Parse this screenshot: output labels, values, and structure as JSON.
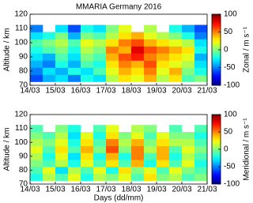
{
  "chart_data": [
    {
      "type": "heatmap",
      "title": "MMARIA Germany 2016",
      "ylabel": "Altitude / km",
      "colormap": "jet",
      "x": [
        14.25,
        14.75,
        15.25,
        15.75,
        16.25,
        16.75,
        17.25,
        17.75,
        18.25,
        18.75,
        19.25,
        19.75,
        20.25,
        20.75
      ],
      "y": [
        75,
        80,
        85,
        90,
        95,
        100,
        105,
        110
      ],
      "values": [
        [
          -60,
          -40,
          -30,
          -50,
          -20,
          -30,
          10,
          30,
          20,
          40,
          10,
          30,
          -10,
          0
        ],
        [
          -50,
          -30,
          -40,
          -20,
          -30,
          -10,
          20,
          40,
          30,
          50,
          20,
          40,
          0,
          -20
        ],
        [
          -40,
          -50,
          -20,
          -40,
          -10,
          -20,
          30,
          50,
          40,
          60,
          30,
          20,
          10,
          -30
        ],
        [
          -30,
          -40,
          -10,
          -30,
          0,
          -10,
          40,
          60,
          70,
          50,
          40,
          30,
          20,
          -40
        ],
        [
          -20,
          -10,
          0,
          -20,
          10,
          0,
          50,
          40,
          80,
          60,
          50,
          40,
          30,
          -20
        ],
        [
          -10,
          0,
          10,
          -10,
          20,
          10,
          30,
          50,
          60,
          40,
          30,
          20,
          10,
          -30
        ],
        [
          -30,
          -20,
          0,
          -40,
          0,
          -10,
          10,
          30,
          40,
          20,
          10,
          0,
          -20,
          -50
        ],
        [
          -50,
          null,
          -30,
          -60,
          -20,
          -30,
          0,
          20,
          null,
          10,
          null,
          -20,
          -40,
          -60
        ]
      ],
      "xlim": [
        14,
        21
      ],
      "xticks": [
        {
          "value": 14,
          "label": "14/03"
        },
        {
          "value": 15,
          "label": "15/03"
        },
        {
          "value": 16,
          "label": "16/03"
        },
        {
          "value": 17,
          "label": "17/03"
        },
        {
          "value": 18,
          "label": "18/03"
        },
        {
          "value": 19,
          "label": "19/03"
        },
        {
          "value": 20,
          "label": "20/03"
        },
        {
          "value": 21,
          "label": "21/03"
        }
      ],
      "ylim": [
        70,
        120
      ],
      "yticks": [
        70,
        80,
        90,
        100,
        110,
        120
      ],
      "colorbar": {
        "label": "Zonal / m s⁻¹",
        "clim": [
          -100,
          100
        ],
        "cticks": [
          -100,
          -50,
          0,
          50,
          100
        ]
      }
    },
    {
      "type": "heatmap",
      "ylabel": "Altitude / km",
      "xlabel": "Days (dd/mm)",
      "colormap": "jet",
      "x": [
        14.25,
        14.75,
        15.25,
        15.75,
        16.25,
        16.75,
        17.25,
        17.75,
        18.25,
        18.75,
        19.25,
        19.75,
        20.25,
        20.75
      ],
      "y": [
        75,
        80,
        85,
        90,
        95,
        100,
        105,
        110
      ],
      "values": [
        [
          -20,
          10,
          -10,
          20,
          -20,
          10,
          0,
          20,
          -10,
          30,
          0,
          10,
          -10,
          0
        ],
        [
          -10,
          20,
          -30,
          10,
          -10,
          20,
          -20,
          30,
          0,
          20,
          -10,
          20,
          0,
          -10
        ],
        [
          0,
          -10,
          10,
          -20,
          20,
          -10,
          30,
          -10,
          40,
          -20,
          30,
          -10,
          20,
          -20
        ],
        [
          10,
          -20,
          20,
          -30,
          30,
          -20,
          40,
          -20,
          50,
          -10,
          40,
          -20,
          10,
          -10
        ],
        [
          20,
          -10,
          30,
          -10,
          40,
          0,
          60,
          0,
          50,
          10,
          40,
          -10,
          20,
          0
        ],
        [
          10,
          0,
          20,
          -20,
          30,
          -10,
          50,
          10,
          40,
          0,
          30,
          10,
          10,
          -10
        ],
        [
          0,
          -10,
          10,
          -30,
          20,
          -20,
          30,
          0,
          20,
          -10,
          20,
          0,
          0,
          -20
        ],
        [
          -10,
          null,
          0,
          -20,
          null,
          -10,
          20,
          null,
          10,
          0,
          null,
          -10,
          null,
          -10
        ]
      ],
      "xlim": [
        14,
        21
      ],
      "xticks": [
        {
          "value": 14,
          "label": "14/03"
        },
        {
          "value": 15,
          "label": "15/03"
        },
        {
          "value": 16,
          "label": "16/03"
        },
        {
          "value": 17,
          "label": "17/03"
        },
        {
          "value": 18,
          "label": "18/03"
        },
        {
          "value": 19,
          "label": "19/03"
        },
        {
          "value": 20,
          "label": "20/03"
        },
        {
          "value": 21,
          "label": "21/03"
        }
      ],
      "ylim": [
        70,
        120
      ],
      "yticks": [
        70,
        80,
        90,
        100,
        110,
        120
      ],
      "colorbar": {
        "label": "Meridional / m s⁻¹",
        "clim": [
          -100,
          100
        ],
        "cticks": [
          -100,
          -50,
          0,
          50,
          100
        ]
      }
    }
  ]
}
